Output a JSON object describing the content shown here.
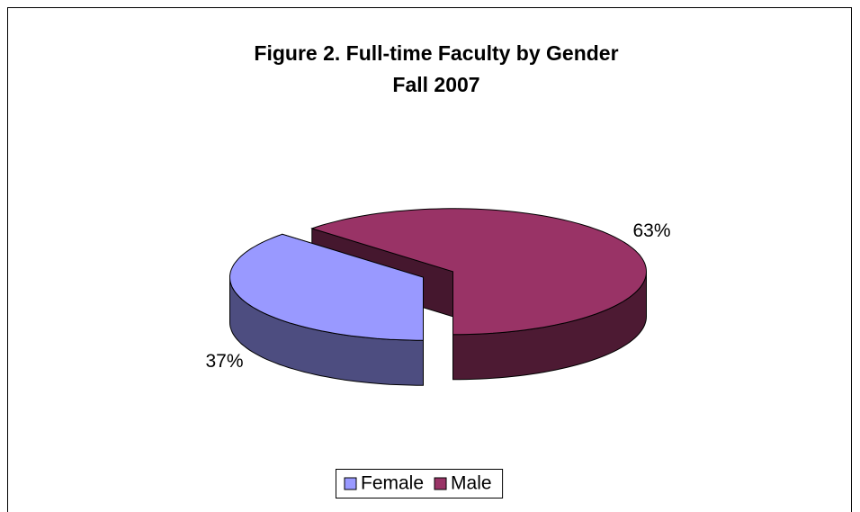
{
  "chart_data": {
    "type": "pie",
    "title": "Figure 2. Full-time Faculty by Gender",
    "subtitle": "Fall 2007",
    "categories": [
      "Female",
      "Male"
    ],
    "values": [
      37,
      63
    ],
    "value_labels": [
      "37%",
      "63%"
    ],
    "colors": [
      "#9999ff",
      "#993366"
    ],
    "legend": "bottom"
  }
}
